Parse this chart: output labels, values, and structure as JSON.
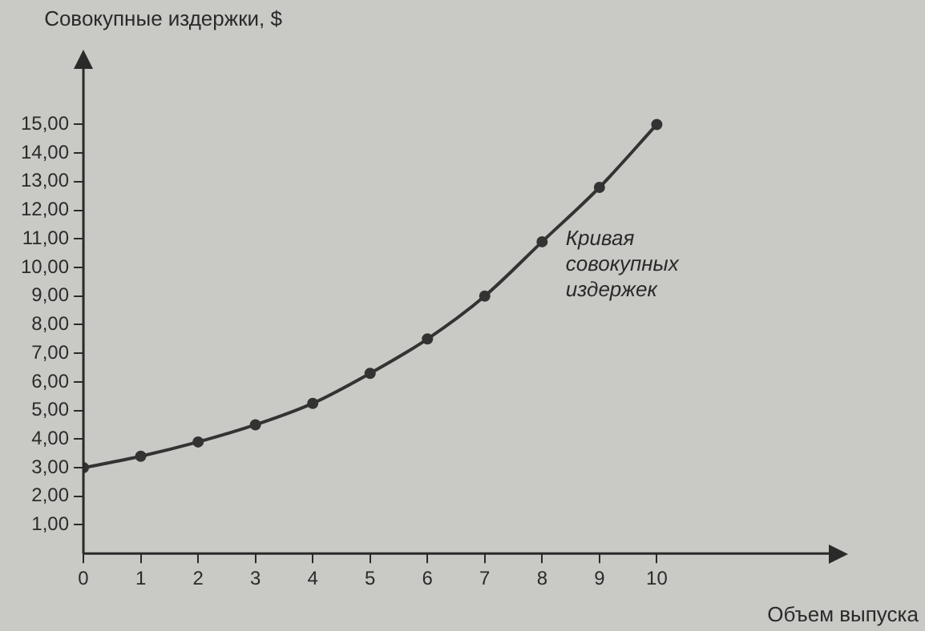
{
  "chart_data": {
    "type": "line",
    "ylabel": "Совокупные издержки, $",
    "xlabel": "Объем выпуска",
    "x": [
      0,
      1,
      2,
      3,
      4,
      5,
      6,
      7,
      8,
      9,
      10
    ],
    "series": [
      {
        "color": "#333333",
        "values": [
          3.0,
          3.4,
          3.9,
          4.5,
          5.25,
          6.3,
          7.5,
          9.0,
          10.9,
          12.8,
          15.0
        ]
      }
    ],
    "xlim": [
      0,
      13
    ],
    "xticks": [
      0,
      1,
      2,
      3,
      4,
      5,
      6,
      7,
      8,
      9,
      10
    ],
    "ylim": [
      0,
      17
    ],
    "yticks": [
      {
        "value": 1,
        "label": "1,00"
      },
      {
        "value": 2,
        "label": "2,00"
      },
      {
        "value": 3,
        "label": "3,00"
      },
      {
        "value": 4,
        "label": "4,00"
      },
      {
        "value": 5,
        "label": "5,00"
      },
      {
        "value": 6,
        "label": "6,00"
      },
      {
        "value": 7,
        "label": "7,00"
      },
      {
        "value": 8,
        "label": "8,00"
      },
      {
        "value": 9,
        "label": "9,00"
      },
      {
        "value": 10,
        "label": "10,00"
      },
      {
        "value": 11,
        "label": "11,00"
      },
      {
        "value": 12,
        "label": "12,00"
      },
      {
        "value": 13,
        "label": "13,00"
      },
      {
        "value": 14,
        "label": "14,00"
      },
      {
        "value": 15,
        "label": "15,00"
      }
    ],
    "annotations": [
      {
        "text": "Кривая совокупных издержек",
        "x": 8.3,
        "y": 11
      }
    ],
    "grid": false,
    "legend": false,
    "marker": "circle",
    "line_style": "solid"
  }
}
